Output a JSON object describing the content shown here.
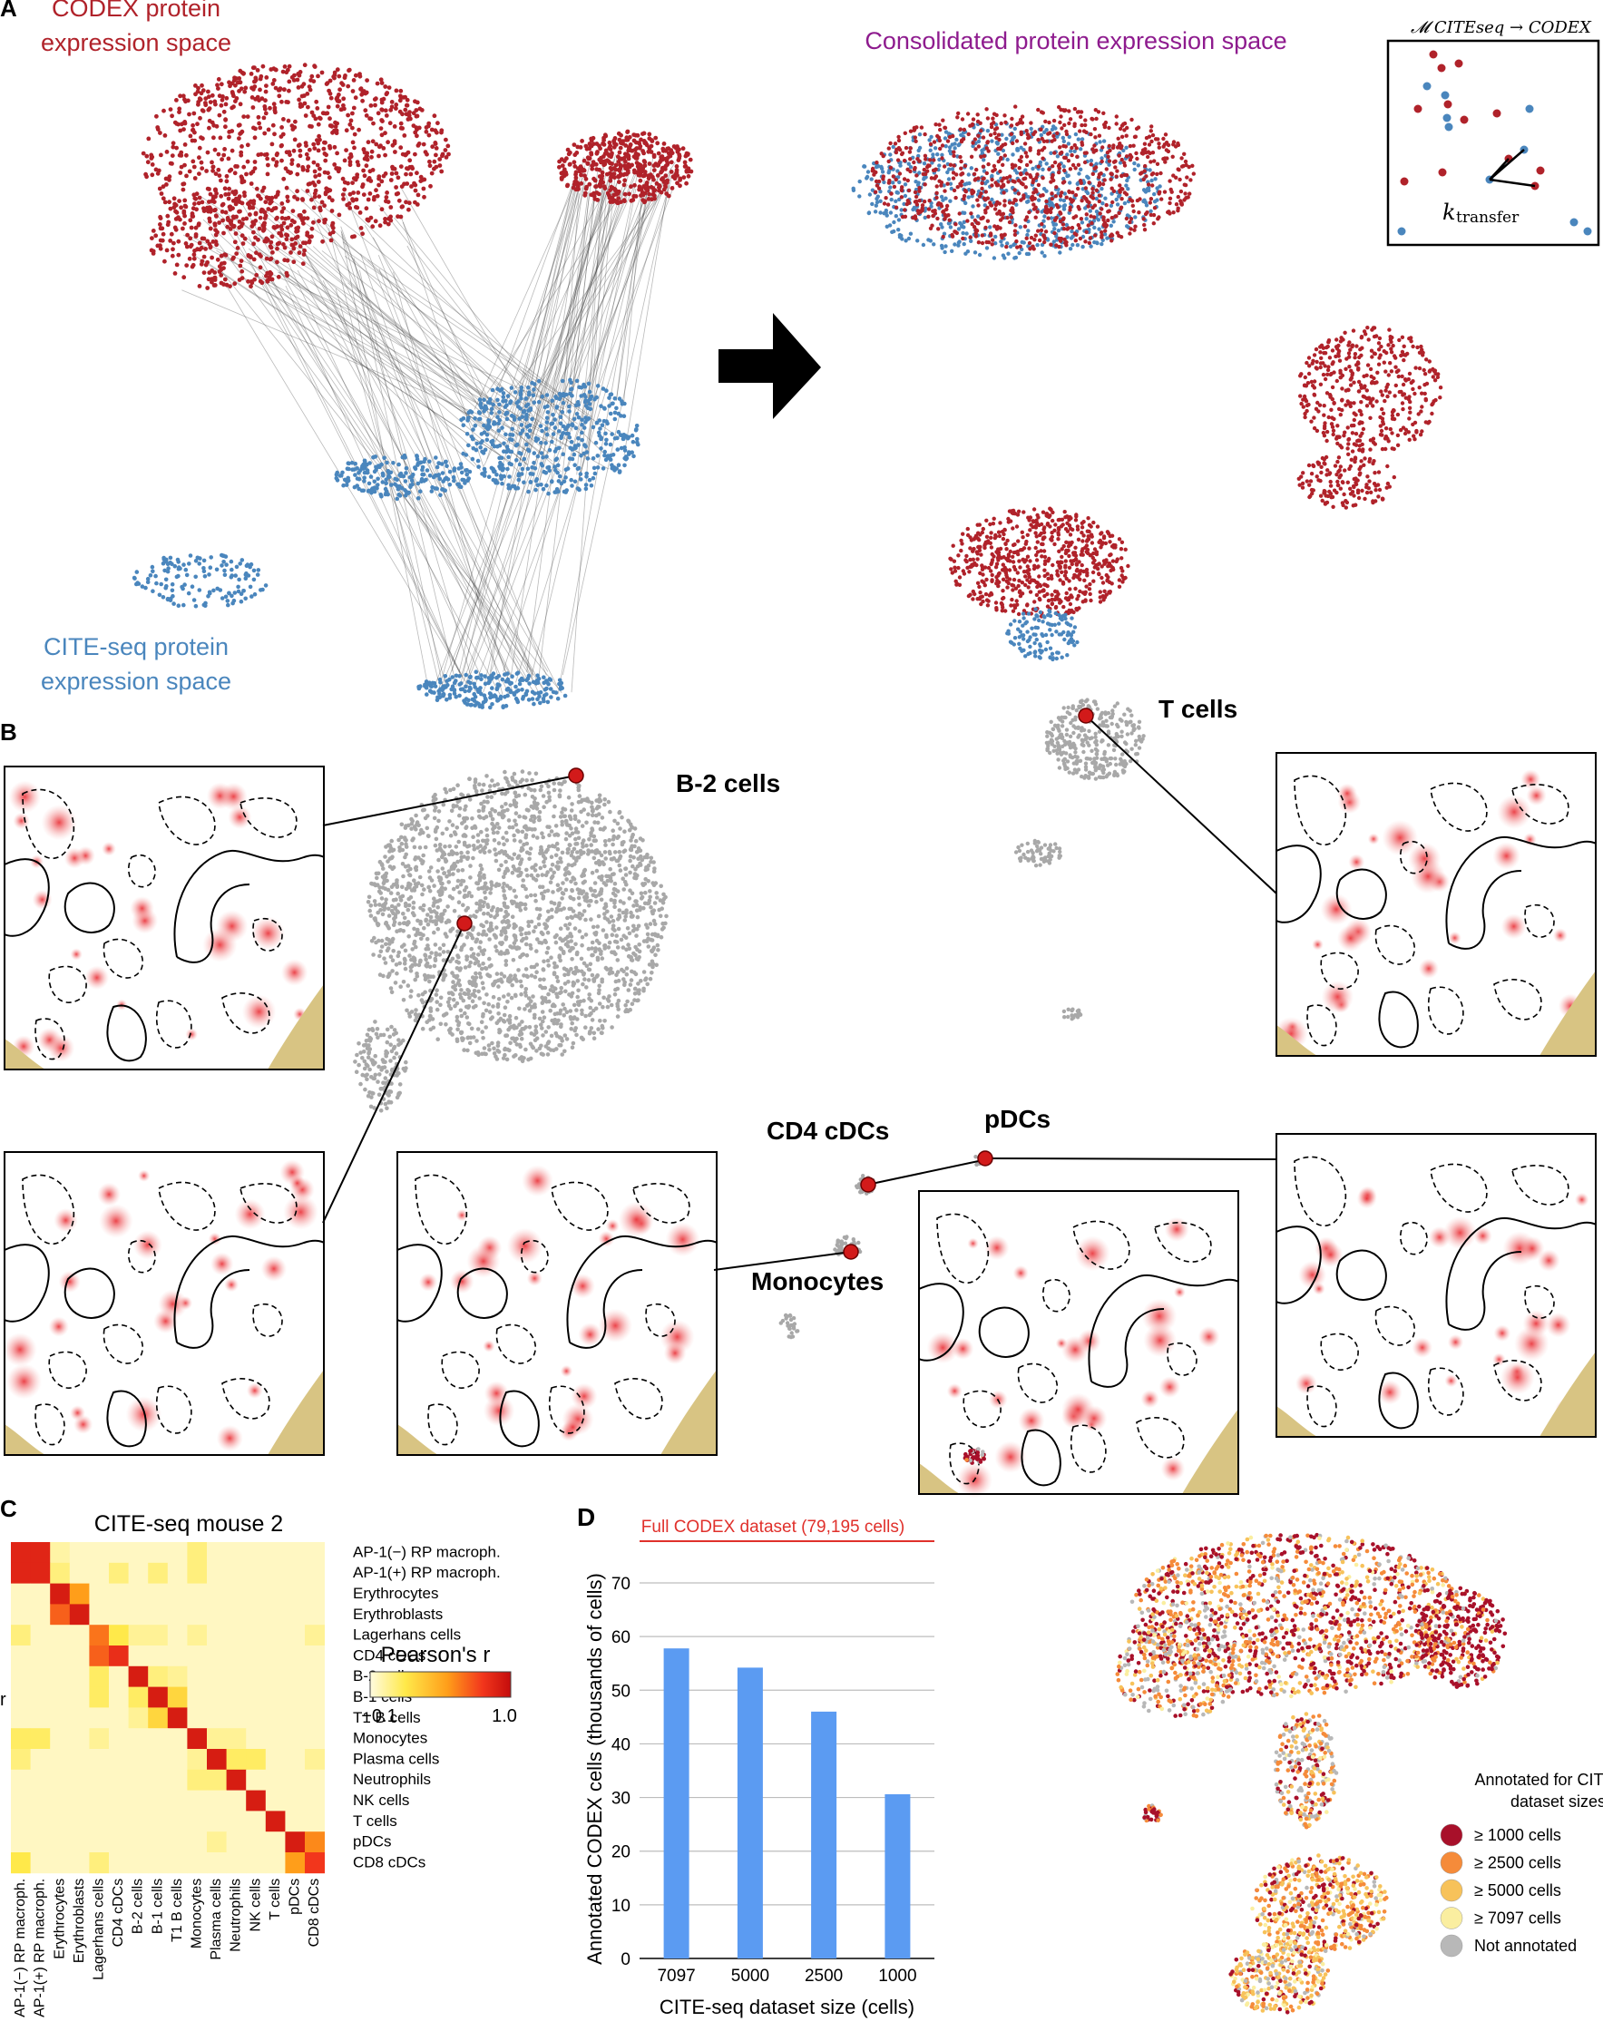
{
  "colors": {
    "codex_red": "#b0222a",
    "cite_blue": "#4a86bd",
    "consolidated_purple": "#8e1b8e",
    "umap_gray": "#a8a8a8",
    "marker_red": "#d21a1a",
    "bar_blue": "#5b9bf2",
    "full_dataset_red": "#e0302b",
    "tissue_tan": "#d8c483"
  },
  "panel_a": {
    "panel_letter": "A",
    "codex_label_line1": "CODEX protein",
    "codex_label_line2": "expression space",
    "cite_label_line1": "CITE-seq protein",
    "cite_label_line2": "expression space",
    "consolidated_title": "Consolidated protein expression space",
    "inset_title": "𝓜 CITEseq → CODEX",
    "inset_k_label": "k",
    "inset_k_subscript": "transfer"
  },
  "panel_b": {
    "panel_letter": "B",
    "cluster_labels": {
      "b2": "B-2 cells",
      "t": "T cells",
      "cd4": "CD4 cDCs",
      "pdc": "pDCs",
      "mono": "Monocytes"
    }
  },
  "panel_c": {
    "panel_letter": "C",
    "title": "CITE-seq mouse 2",
    "side_letter": "r",
    "colorbar_title": "Pearson's r",
    "colorbar_min": "−0.1",
    "colorbar_max": "1.0",
    "row_labels": [
      "AP-1(−) RP macroph.",
      "AP-1(+) RP macroph.",
      "Erythrocytes",
      "Erythroblasts",
      "Lagerhans cells",
      "CD4 cDCs",
      "B-2 cells",
      "B-1 cells",
      "T1 B cells",
      "Monocytes",
      "Plasma cells",
      "Neutrophils",
      "NK cells",
      "T cells",
      "pDCs",
      "CD8 cDCs"
    ],
    "col_labels": [
      "AP-1(−) RP macroph.",
      "AP-1(+) RP macroph.",
      "Erythrocytes",
      "Erythroblasts",
      "Lagerhans cells",
      "CD4 cDCs",
      "B-2 cells",
      "B-1 cells",
      "T1 B cells",
      "Monocytes",
      "Plasma cells",
      "Neutrophils",
      "NK cells",
      "T cells",
      "pDCs",
      "CD8 cDCs"
    ]
  },
  "panel_d": {
    "panel_letter": "D",
    "full_dataset_label": "Full CODEX dataset (79,195 cells)",
    "legend_title_line1": "Annotated for CITE-seq",
    "legend_title_line2": "dataset sizes:",
    "legend_items": [
      {
        "label": "≥ 1000 cells",
        "color": "#a8102a"
      },
      {
        "label": "≥ 2500 cells",
        "color": "#f58b3a"
      },
      {
        "label": "≥ 5000 cells",
        "color": "#f7c25a"
      },
      {
        "label": "≥ 7097 cells",
        "color": "#faeea0"
      },
      {
        "label": "Not annotated",
        "color": "#b8b8b8"
      }
    ]
  },
  "chart_data": [
    {
      "type": "heatmap",
      "title": "CITE-seq mouse 2",
      "rows": [
        "AP-1(−) RP macroph.",
        "AP-1(+) RP macroph.",
        "Erythrocytes",
        "Erythroblasts",
        "Lagerhans cells",
        "CD4 cDCs",
        "B-2 cells",
        "B-1 cells",
        "T1 B cells",
        "Monocytes",
        "Plasma cells",
        "Neutrophils",
        "NK cells",
        "T cells",
        "pDCs",
        "CD8 cDCs"
      ],
      "cols": [
        "AP-1(−) RP macroph.",
        "AP-1(+) RP macroph.",
        "Erythrocytes",
        "Erythroblasts",
        "Lagerhans cells",
        "CD4 cDCs",
        "B-2 cells",
        "B-1 cells",
        "T1 B cells",
        "Monocytes",
        "Plasma cells",
        "Neutrophils",
        "NK cells",
        "T cells",
        "pDCs",
        "CD8 cDCs"
      ],
      "value_range": [
        -0.1,
        1.0
      ],
      "colorbar_label": "Pearson's r",
      "values": [
        [
          0.85,
          0.85,
          0.1,
          0.0,
          0.0,
          0.0,
          0.0,
          0.0,
          0.0,
          0.2,
          0.0,
          0.0,
          0.0,
          0.0,
          0.0,
          0.0
        ],
        [
          0.85,
          0.85,
          0.2,
          0.0,
          0.0,
          0.2,
          0.0,
          0.2,
          0.0,
          0.2,
          0.0,
          0.0,
          0.0,
          0.0,
          0.0,
          0.0
        ],
        [
          0.0,
          0.0,
          0.9,
          0.5,
          0.0,
          0.0,
          0.0,
          0.0,
          0.0,
          0.0,
          0.0,
          0.0,
          0.0,
          0.0,
          0.0,
          0.0
        ],
        [
          0.0,
          0.0,
          0.65,
          0.9,
          0.0,
          0.0,
          0.0,
          0.0,
          0.0,
          0.0,
          0.0,
          0.0,
          0.0,
          0.0,
          0.0,
          0.0
        ],
        [
          0.2,
          0.0,
          0.0,
          0.0,
          0.6,
          0.3,
          0.15,
          0.15,
          0.0,
          0.15,
          0.0,
          0.0,
          0.0,
          0.0,
          0.0,
          0.15
        ],
        [
          0.0,
          0.0,
          0.0,
          0.0,
          0.65,
          0.8,
          0.0,
          0.0,
          0.0,
          0.0,
          0.0,
          0.0,
          0.0,
          0.0,
          0.0,
          0.0
        ],
        [
          0.0,
          0.0,
          0.0,
          0.0,
          0.25,
          0.0,
          0.9,
          0.2,
          0.15,
          0.0,
          0.0,
          0.0,
          0.0,
          0.0,
          0.0,
          0.0
        ],
        [
          0.0,
          0.0,
          0.0,
          0.0,
          0.25,
          0.0,
          0.25,
          0.9,
          0.35,
          0.0,
          0.0,
          0.0,
          0.0,
          0.0,
          0.0,
          0.0
        ],
        [
          0.0,
          0.0,
          0.0,
          0.0,
          0.0,
          0.0,
          0.15,
          0.35,
          0.9,
          0.0,
          0.0,
          0.0,
          0.0,
          0.0,
          0.0,
          0.0
        ],
        [
          0.25,
          0.25,
          0.0,
          0.0,
          0.15,
          0.0,
          0.0,
          0.0,
          0.0,
          0.9,
          0.15,
          0.15,
          0.0,
          0.0,
          0.0,
          0.0
        ],
        [
          0.2,
          0.0,
          0.0,
          0.0,
          0.0,
          0.0,
          0.0,
          0.0,
          0.0,
          0.15,
          0.9,
          0.25,
          0.25,
          0.0,
          0.0,
          0.15
        ],
        [
          0.0,
          0.0,
          0.0,
          0.0,
          0.0,
          0.0,
          0.0,
          0.0,
          0.0,
          0.2,
          0.2,
          0.9,
          0.0,
          0.0,
          0.0,
          0.0
        ],
        [
          0.0,
          0.0,
          0.0,
          0.0,
          0.0,
          0.0,
          0.0,
          0.0,
          0.0,
          0.0,
          0.0,
          0.0,
          0.9,
          0.0,
          0.0,
          0.0
        ],
        [
          0.0,
          0.0,
          0.0,
          0.0,
          0.0,
          0.0,
          0.0,
          0.0,
          0.0,
          0.0,
          0.0,
          0.0,
          0.0,
          0.9,
          0.0,
          0.0
        ],
        [
          0.0,
          0.0,
          0.0,
          0.0,
          0.0,
          0.0,
          0.0,
          0.0,
          0.0,
          0.0,
          0.15,
          0.0,
          0.0,
          0.0,
          0.9,
          0.55
        ],
        [
          0.3,
          0.0,
          0.0,
          0.0,
          0.2,
          0.0,
          0.0,
          0.0,
          0.0,
          0.0,
          0.0,
          0.0,
          0.0,
          0.0,
          0.5,
          0.75
        ]
      ]
    },
    {
      "type": "bar",
      "title": "Full CODEX dataset (79,195 cells)",
      "categories": [
        "7097",
        "5000",
        "2500",
        "1000"
      ],
      "values": [
        57.8,
        54.2,
        46.0,
        30.6
      ],
      "xlabel": "CITE-seq dataset size (cells)",
      "ylabel": "Annotated CODEX cells (thousands of cells)",
      "ylim": [
        0,
        70
      ],
      "yticks": [
        "0",
        "10",
        "20",
        "30",
        "40",
        "50",
        "60",
        "70"
      ],
      "grid": true
    }
  ]
}
